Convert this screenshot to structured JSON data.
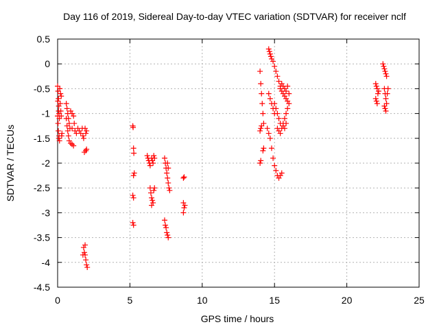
{
  "chart_data": {
    "type": "scatter",
    "title": "Day 116 of 2019, Sidereal Day-to-day VTEC variation (SDTVAR) for receiver nclf",
    "xlabel": "GPS time / hours",
    "ylabel": "SDTVAR / TECUs",
    "xlim": [
      0,
      25
    ],
    "ylim": [
      -4.5,
      0.5
    ],
    "x_ticks": [
      0,
      5,
      10,
      15,
      20,
      25
    ],
    "x_tick_labels": [
      "0",
      "5",
      "10",
      "15",
      "20",
      "25"
    ],
    "y_ticks": [
      0.5,
      0,
      -0.5,
      -1,
      -1.5,
      -2,
      -2.5,
      -3,
      -3.5,
      -4,
      -4.5
    ],
    "y_tick_labels": [
      "0.5",
      "0",
      "-0.5",
      "-1",
      "-1.5",
      "-2",
      "-2.5",
      "-3",
      "-3.5",
      "-4",
      "-4.5"
    ],
    "grid": true,
    "marker": "+",
    "marker_color": "#ff0000",
    "series": [
      {
        "name": "SDTVAR",
        "points": [
          [
            0.0,
            -0.45
          ],
          [
            0.03,
            -0.55
          ],
          [
            0.06,
            -0.7
          ],
          [
            0.08,
            -0.85
          ],
          [
            0.1,
            -1.0
          ],
          [
            0.12,
            -1.1
          ],
          [
            0.0,
            -1.05
          ],
          [
            0.03,
            -1.2
          ],
          [
            0.05,
            -1.35
          ],
          [
            0.08,
            -1.5
          ],
          [
            0.1,
            -1.45
          ],
          [
            0.13,
            -1.55
          ],
          [
            0.15,
            -0.5
          ],
          [
            0.2,
            -0.6
          ],
          [
            0.25,
            -0.65
          ],
          [
            0.18,
            -0.8
          ],
          [
            0.22,
            -0.95
          ],
          [
            0.25,
            -1.05
          ],
          [
            0.3,
            -1.4
          ],
          [
            0.28,
            -1.45
          ],
          [
            0.02,
            -0.75
          ],
          [
            0.07,
            -0.95
          ],
          [
            0.6,
            -0.8
          ],
          [
            0.65,
            -0.9
          ],
          [
            0.7,
            -1.0
          ],
          [
            0.75,
            -1.1
          ],
          [
            0.8,
            -1.2
          ],
          [
            0.85,
            -1.3
          ],
          [
            0.6,
            -1.1
          ],
          [
            0.65,
            -1.25
          ],
          [
            0.7,
            -1.35
          ],
          [
            0.75,
            -1.45
          ],
          [
            0.8,
            -1.55
          ],
          [
            0.9,
            -1.6
          ],
          [
            1.0,
            -1.62
          ],
          [
            1.1,
            -1.65
          ],
          [
            0.9,
            -0.95
          ],
          [
            1.0,
            -1.0
          ],
          [
            1.1,
            -1.05
          ],
          [
            1.15,
            -1.2
          ],
          [
            1.0,
            -1.3
          ],
          [
            1.2,
            -1.35
          ],
          [
            1.3,
            -1.4
          ],
          [
            1.4,
            -1.3
          ],
          [
            1.5,
            -1.35
          ],
          [
            1.6,
            -1.4
          ],
          [
            1.7,
            -1.3
          ],
          [
            1.75,
            -1.45
          ],
          [
            1.8,
            -1.5
          ],
          [
            1.9,
            -1.3
          ],
          [
            1.95,
            -1.4
          ],
          [
            2.0,
            -1.35
          ],
          [
            1.85,
            -1.78
          ],
          [
            1.95,
            -1.75
          ],
          [
            2.0,
            -1.72
          ],
          [
            1.8,
            -3.7
          ],
          [
            1.85,
            -3.8
          ],
          [
            1.9,
            -3.85
          ],
          [
            1.95,
            -3.95
          ],
          [
            2.0,
            -4.05
          ],
          [
            2.05,
            -4.1
          ],
          [
            1.75,
            -3.85
          ],
          [
            1.9,
            -3.65
          ],
          [
            5.2,
            -1.25
          ],
          [
            5.22,
            -1.28
          ],
          [
            5.25,
            -1.7
          ],
          [
            5.27,
            -1.8
          ],
          [
            5.3,
            -2.2
          ],
          [
            5.25,
            -2.25
          ],
          [
            5.2,
            -2.65
          ],
          [
            5.25,
            -2.7
          ],
          [
            5.2,
            -3.2
          ],
          [
            5.25,
            -3.25
          ],
          [
            6.2,
            -1.85
          ],
          [
            6.25,
            -1.9
          ],
          [
            6.3,
            -1.95
          ],
          [
            6.35,
            -2.0
          ],
          [
            6.4,
            -2.05
          ],
          [
            6.5,
            -1.9
          ],
          [
            6.55,
            -1.95
          ],
          [
            6.6,
            -2.0
          ],
          [
            6.65,
            -1.85
          ],
          [
            6.7,
            -1.9
          ],
          [
            6.4,
            -2.5
          ],
          [
            6.45,
            -2.6
          ],
          [
            6.5,
            -2.7
          ],
          [
            6.55,
            -2.75
          ],
          [
            6.6,
            -2.8
          ],
          [
            6.65,
            -2.55
          ],
          [
            6.7,
            -2.5
          ],
          [
            6.5,
            -2.85
          ],
          [
            7.4,
            -1.9
          ],
          [
            7.45,
            -2.0
          ],
          [
            7.5,
            -2.1
          ],
          [
            7.55,
            -2.2
          ],
          [
            7.6,
            -2.3
          ],
          [
            7.65,
            -2.4
          ],
          [
            7.7,
            -2.5
          ],
          [
            7.75,
            -2.55
          ],
          [
            7.6,
            -2.0
          ],
          [
            7.65,
            -2.1
          ],
          [
            7.4,
            -3.15
          ],
          [
            7.45,
            -3.25
          ],
          [
            7.5,
            -3.3
          ],
          [
            7.55,
            -3.4
          ],
          [
            7.6,
            -3.45
          ],
          [
            7.65,
            -3.5
          ],
          [
            8.7,
            -2.3
          ],
          [
            8.75,
            -2.28
          ],
          [
            8.7,
            -2.8
          ],
          [
            8.75,
            -2.9
          ],
          [
            8.7,
            -3.0
          ],
          [
            8.8,
            -2.85
          ],
          [
            14.0,
            -0.15
          ],
          [
            14.05,
            -0.4
          ],
          [
            14.1,
            -0.6
          ],
          [
            14.15,
            -0.8
          ],
          [
            14.2,
            -1.0
          ],
          [
            14.25,
            -1.2
          ],
          [
            14.0,
            -1.35
          ],
          [
            14.05,
            -1.3
          ],
          [
            14.1,
            -1.25
          ],
          [
            14.0,
            -2.0
          ],
          [
            14.05,
            -1.95
          ],
          [
            14.2,
            -1.75
          ],
          [
            14.25,
            -1.7
          ],
          [
            14.6,
            0.3
          ],
          [
            14.65,
            0.25
          ],
          [
            14.7,
            0.2
          ],
          [
            14.75,
            0.15
          ],
          [
            14.8,
            0.1
          ],
          [
            14.9,
            0.05
          ],
          [
            15.0,
            -0.05
          ],
          [
            15.1,
            -0.15
          ],
          [
            15.2,
            -0.25
          ],
          [
            15.3,
            -0.35
          ],
          [
            15.4,
            -0.45
          ],
          [
            15.5,
            -0.55
          ],
          [
            15.6,
            -0.6
          ],
          [
            15.7,
            -0.65
          ],
          [
            15.8,
            -0.7
          ],
          [
            15.9,
            -0.75
          ],
          [
            14.6,
            -0.6
          ],
          [
            14.7,
            -0.7
          ],
          [
            14.8,
            -0.8
          ],
          [
            14.9,
            -0.9
          ],
          [
            15.0,
            -1.0
          ],
          [
            14.5,
            -1.3
          ],
          [
            14.6,
            -1.4
          ],
          [
            14.7,
            -1.5
          ],
          [
            14.8,
            -1.7
          ],
          [
            14.9,
            -1.9
          ],
          [
            15.0,
            -2.05
          ],
          [
            15.1,
            -2.15
          ],
          [
            15.2,
            -2.25
          ],
          [
            15.3,
            -2.3
          ],
          [
            15.4,
            -2.25
          ],
          [
            15.5,
            -2.2
          ],
          [
            15.0,
            -0.8
          ],
          [
            15.1,
            -0.9
          ],
          [
            15.2,
            -1.0
          ],
          [
            15.3,
            -1.1
          ],
          [
            15.4,
            -1.2
          ],
          [
            15.5,
            -1.3
          ],
          [
            15.6,
            -1.2
          ],
          [
            15.7,
            -1.1
          ],
          [
            15.8,
            -1.0
          ],
          [
            15.9,
            -0.9
          ],
          [
            16.0,
            -0.8
          ],
          [
            15.4,
            -0.5
          ],
          [
            15.5,
            -0.4
          ],
          [
            15.6,
            -0.45
          ],
          [
            15.7,
            -0.5
          ],
          [
            15.8,
            -0.55
          ],
          [
            15.9,
            -0.45
          ],
          [
            16.0,
            -0.6
          ],
          [
            15.2,
            -1.3
          ],
          [
            15.3,
            -1.35
          ],
          [
            15.4,
            -1.4
          ],
          [
            15.6,
            -1.25
          ],
          [
            15.7,
            -1.3
          ],
          [
            15.8,
            -1.2
          ],
          [
            22.0,
            -0.4
          ],
          [
            22.05,
            -0.45
          ],
          [
            22.1,
            -0.5
          ],
          [
            22.0,
            -0.7
          ],
          [
            22.05,
            -0.75
          ],
          [
            22.1,
            -0.8
          ],
          [
            22.15,
            -0.6
          ],
          [
            22.2,
            -0.55
          ],
          [
            22.5,
            0.0
          ],
          [
            22.55,
            -0.05
          ],
          [
            22.6,
            -0.1
          ],
          [
            22.65,
            -0.15
          ],
          [
            22.7,
            -0.2
          ],
          [
            22.75,
            -0.25
          ],
          [
            22.6,
            -0.5
          ],
          [
            22.65,
            -0.6
          ],
          [
            22.7,
            -0.7
          ],
          [
            22.75,
            -0.8
          ],
          [
            22.6,
            -0.85
          ],
          [
            22.65,
            -0.9
          ],
          [
            22.7,
            -0.95
          ],
          [
            22.8,
            -0.6
          ],
          [
            22.85,
            -0.5
          ]
        ]
      }
    ]
  }
}
